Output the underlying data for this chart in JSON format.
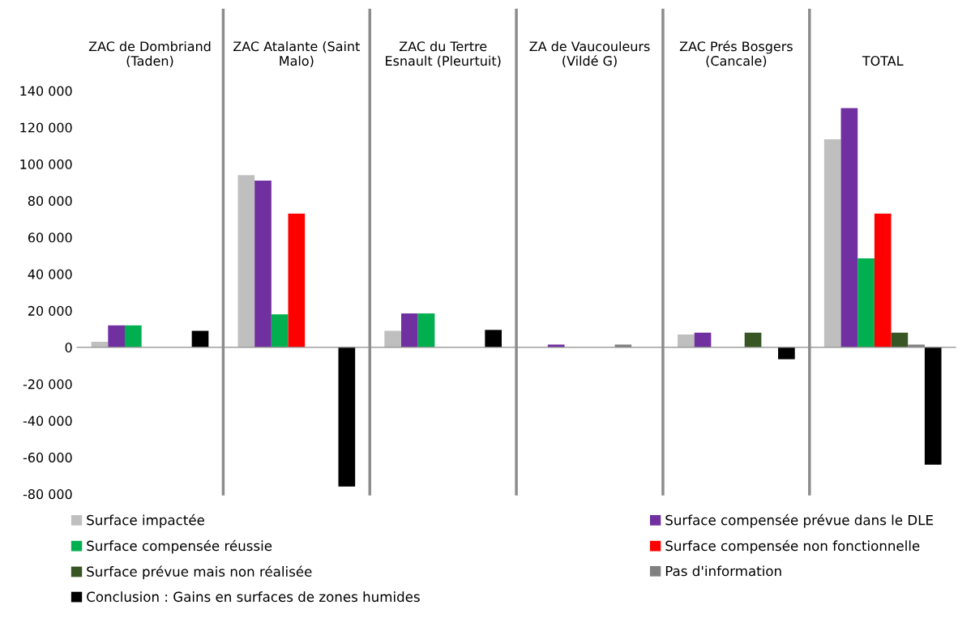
{
  "chart_data": {
    "type": "bar",
    "categories": [
      "ZAC de Dombriand (Taden)",
      "ZAC Atalante (Saint Malo)",
      "ZAC du Tertre Esnault (Pleurtuit)",
      "ZA de Vaucouleurs (Vildé G)",
      "ZAC Prés Bosgers (Cancale)",
      "TOTAL"
    ],
    "series": [
      {
        "name": "Surface impactée",
        "color": "#bfbfbf",
        "values": [
          3000,
          94000,
          9000,
          0,
          7000,
          113500
        ]
      },
      {
        "name": "Surface compensée prévue dans le DLE",
        "color": "#7030a0",
        "values": [
          12000,
          91000,
          18500,
          1500,
          8000,
          130500
        ]
      },
      {
        "name": "Surface compensée réussie",
        "color": "#00b050",
        "values": [
          12000,
          18000,
          18500,
          0,
          0,
          48500
        ]
      },
      {
        "name": "Surface compensée non fonctionnelle",
        "color": "#ff0000",
        "values": [
          0,
          73000,
          0,
          0,
          0,
          73000
        ]
      },
      {
        "name": "Surface prévue mais non réalisée",
        "color": "#375623",
        "values": [
          0,
          0,
          0,
          0,
          8000,
          8000
        ]
      },
      {
        "name": "Pas d'information",
        "color": "#808080",
        "values": [
          0,
          0,
          0,
          1500,
          0,
          1500
        ]
      },
      {
        "name": "Conclusion : Gains en surfaces de zones humides",
        "color": "#000000",
        "values": [
          9000,
          -76000,
          9500,
          0,
          -6500,
          -64000
        ]
      }
    ],
    "ylim": [
      -80000,
      140000
    ],
    "yticks": [
      {
        "value": -80000,
        "label": "-80 000"
      },
      {
        "value": -60000,
        "label": "-60 000"
      },
      {
        "value": -40000,
        "label": "-40 000"
      },
      {
        "value": -20000,
        "label": "-20 000"
      },
      0,
      {
        "value": 20000,
        "label": "20 000"
      },
      {
        "value": 40000,
        "label": "40 000"
      },
      {
        "value": 60000,
        "label": "60 000"
      },
      {
        "value": 80000,
        "label": "80 000"
      },
      {
        "value": 100000,
        "label": "100 000"
      },
      {
        "value": 120000,
        "label": "120 000"
      },
      {
        "value": 140000,
        "label": "140 000"
      }
    ],
    "grid": "x",
    "legend": "bottom"
  }
}
